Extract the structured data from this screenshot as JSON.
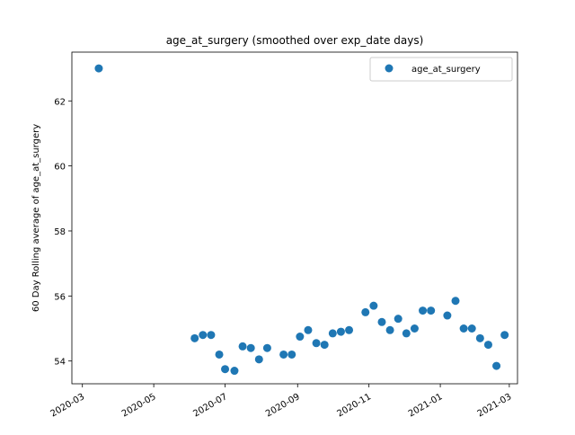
{
  "chart_data": {
    "type": "scatter",
    "title": "age_at_surgery (smoothed over exp_date days)",
    "xlabel": "",
    "ylabel": "60 Day Rolling average of age_at_surgery",
    "x_ticks": [
      "2020-03",
      "2020-05",
      "2020-07",
      "2020-09",
      "2020-11",
      "2021-01",
      "2021-03"
    ],
    "y_ticks": [
      "54",
      "56",
      "58",
      "60",
      "62"
    ],
    "xlim": [
      "2020-02-21",
      "2021-03-08"
    ],
    "ylim": [
      53.3,
      63.5
    ],
    "legend": {
      "position": "top-right",
      "entries": [
        "age_at_surgery"
      ]
    },
    "grid": false,
    "color": "#1f77b4",
    "series": [
      {
        "name": "age_at_surgery",
        "points": [
          {
            "x": "2020-03-15",
            "y": 63.0
          },
          {
            "x": "2020-06-05",
            "y": 54.7
          },
          {
            "x": "2020-06-12",
            "y": 54.8
          },
          {
            "x": "2020-06-19",
            "y": 54.8
          },
          {
            "x": "2020-06-26",
            "y": 54.2
          },
          {
            "x": "2020-07-01",
            "y": 53.75
          },
          {
            "x": "2020-07-09",
            "y": 53.7
          },
          {
            "x": "2020-07-16",
            "y": 54.45
          },
          {
            "x": "2020-07-23",
            "y": 54.4
          },
          {
            "x": "2020-07-30",
            "y": 54.05
          },
          {
            "x": "2020-08-06",
            "y": 54.4
          },
          {
            "x": "2020-08-20",
            "y": 54.2
          },
          {
            "x": "2020-08-27",
            "y": 54.2
          },
          {
            "x": "2020-09-03",
            "y": 54.75
          },
          {
            "x": "2020-09-10",
            "y": 54.95
          },
          {
            "x": "2020-09-17",
            "y": 54.55
          },
          {
            "x": "2020-09-24",
            "y": 54.5
          },
          {
            "x": "2020-10-01",
            "y": 54.85
          },
          {
            "x": "2020-10-08",
            "y": 54.9
          },
          {
            "x": "2020-10-15",
            "y": 54.95
          },
          {
            "x": "2020-10-29",
            "y": 55.5
          },
          {
            "x": "2020-11-05",
            "y": 55.7
          },
          {
            "x": "2020-11-12",
            "y": 55.2
          },
          {
            "x": "2020-11-19",
            "y": 54.95
          },
          {
            "x": "2020-11-26",
            "y": 55.3
          },
          {
            "x": "2020-12-03",
            "y": 54.85
          },
          {
            "x": "2020-12-10",
            "y": 55.0
          },
          {
            "x": "2020-12-17",
            "y": 55.55
          },
          {
            "x": "2020-12-24",
            "y": 55.55
          },
          {
            "x": "2021-01-07",
            "y": 55.4
          },
          {
            "x": "2021-01-14",
            "y": 55.85
          },
          {
            "x": "2021-01-21",
            "y": 55.0
          },
          {
            "x": "2021-01-28",
            "y": 55.0
          },
          {
            "x": "2021-02-04",
            "y": 54.7
          },
          {
            "x": "2021-02-11",
            "y": 54.5
          },
          {
            "x": "2021-02-18",
            "y": 53.85
          },
          {
            "x": "2021-02-25",
            "y": 54.8
          }
        ]
      }
    ]
  }
}
